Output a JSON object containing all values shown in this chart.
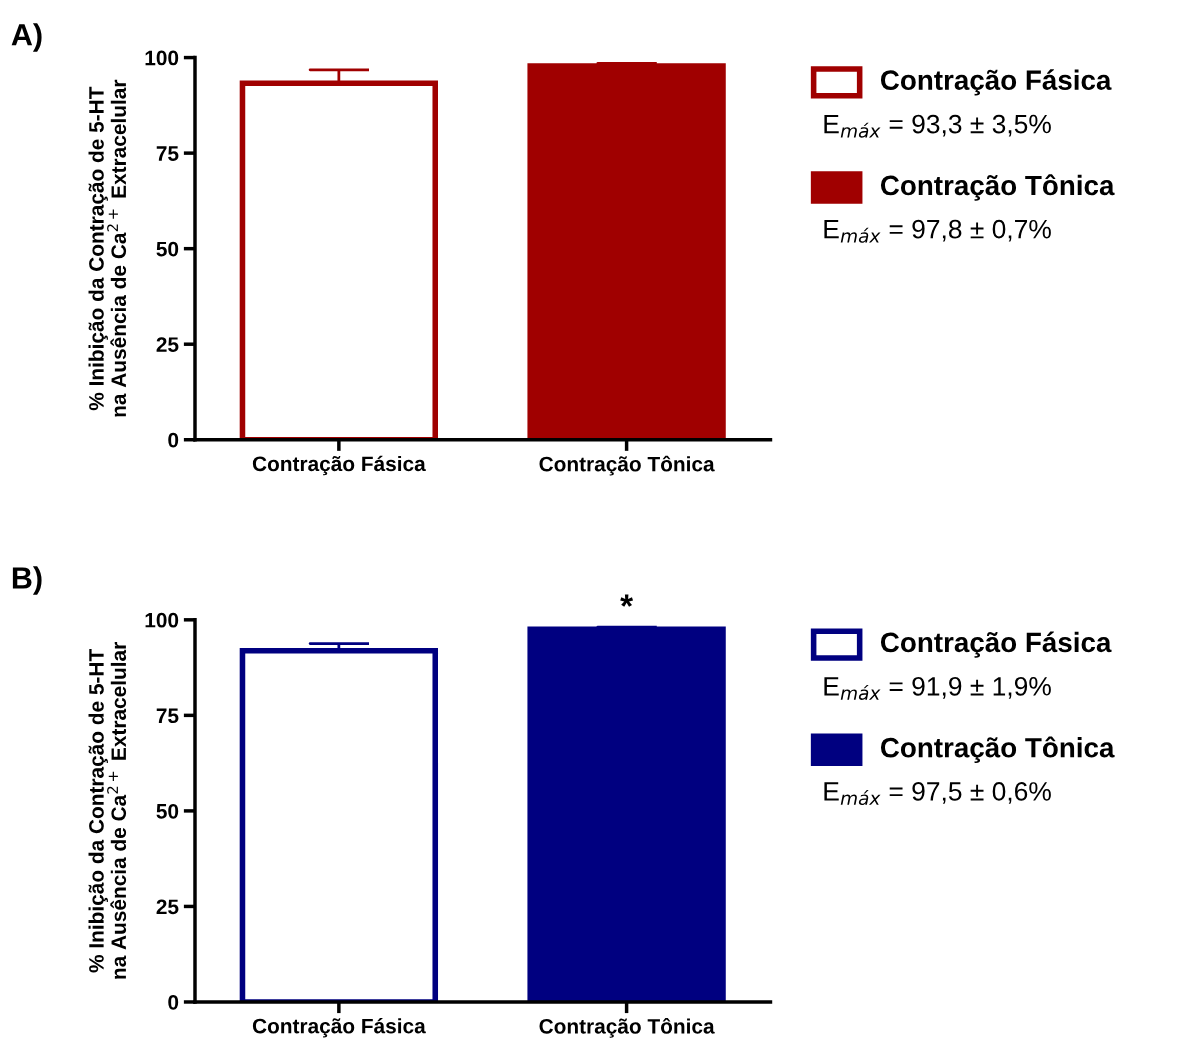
{
  "chart_data": [
    {
      "type": "bar",
      "title": "A)",
      "ylabel": "% Inibição da Contração de 5-HT\nna Ausência de Ca$^{2+}$ Extracelular",
      "categories": [
        "Contração Fásica",
        "Contração Tônica"
      ],
      "values": [
        93.3,
        97.8
      ],
      "colors": [
        "#ffffff",
        "#a00000"
      ],
      "errors": [
        [
          93.3,
          96.8
        ],
        [
          97.8,
          98.5
        ]
      ],
      "ylim": [
        0,
        100
      ],
      "yticks": [
        0,
        25,
        50,
        75,
        100
      ],
      "grid": false,
      "annotations": [
        "E$_{máx}$ = 93,3 ± 3,5%",
        "E$_{máx}$ = 97,8 ± 0,7%"
      ]
    },
    {
      "type": "bar",
      "title": "B)",
      "ylabel": "% Inibição da Contração de 5-HT\nna Ausência de Ca$^{2+}$ Extracelular",
      "categories": [
        "Contração Fásica",
        "Contração Tônica"
      ],
      "values": [
        91.9,
        97.5
      ],
      "colors": [
        "#ffffff",
        "#000080"
      ],
      "errors": [
        [
          91.9,
          93.8
        ],
        [
          97.5,
          98.1
        ]
      ],
      "ylim": [
        0,
        100
      ],
      "yticks": [
        0,
        25,
        50,
        75,
        100
      ],
      "grid": false,
      "annotations": [
        "E$_{máx}$ = 91,9 ± 1,9%",
        "E$_{máx}$ = 97,5 ± 0,6%",
        {
          "text": "*",
          "x": "Contração Tônica",
          "y": 98.1
        }
      ]
    }
  ]
}
